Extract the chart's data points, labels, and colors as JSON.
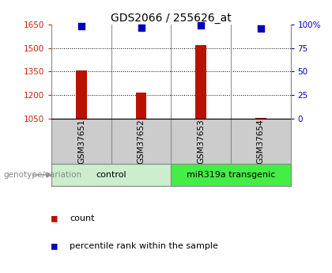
{
  "title": "GDS2066 / 255626_at",
  "samples": [
    "GSM37651",
    "GSM37652",
    "GSM37653",
    "GSM37654"
  ],
  "counts": [
    1358,
    1218,
    1520,
    1053
  ],
  "percentiles": [
    98,
    97,
    99,
    96
  ],
  "ylim_left": [
    1050,
    1650
  ],
  "yticks_left": [
    1050,
    1200,
    1350,
    1500,
    1650
  ],
  "ylim_right": [
    0,
    100
  ],
  "yticks_right": [
    0,
    25,
    50,
    75,
    100
  ],
  "ytick_right_labels": [
    "0",
    "25",
    "50",
    "75",
    "100%"
  ],
  "bar_color": "#bb1100",
  "dot_color": "#0000bb",
  "groups": [
    {
      "label": "control",
      "indices": [
        0,
        1
      ],
      "color": "#cceecc"
    },
    {
      "label": "miR319a transgenic",
      "indices": [
        2,
        3
      ],
      "color": "#44ee44"
    }
  ],
  "background_color": "#ffffff",
  "plot_bg": "#ffffff",
  "left_tick_color": "#cc2200",
  "right_tick_color": "#0000cc",
  "bar_width": 0.18,
  "dot_size": 40,
  "legend_items": [
    "count",
    "percentile rank within the sample"
  ],
  "legend_colors": [
    "#bb1100",
    "#0000bb"
  ],
  "genotype_label": "genotype/variation"
}
